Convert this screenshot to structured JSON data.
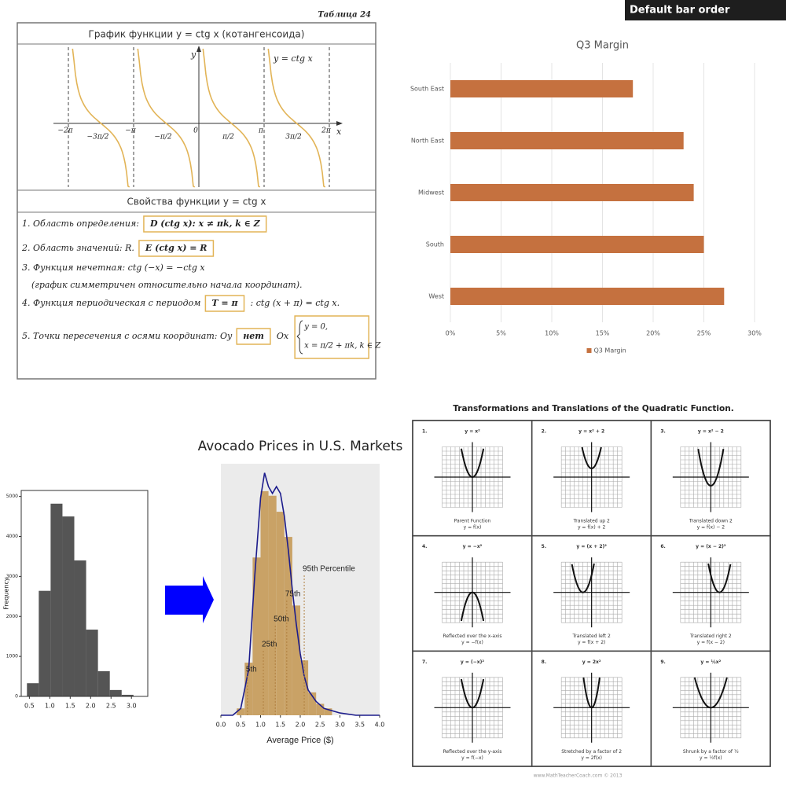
{
  "banner": "Default bar order",
  "cotangent_table": {
    "label": "Таблица 24",
    "graph_title": "График функции y = ctg x (котангенсоида)",
    "axis_y": "y",
    "axis_x": "x",
    "curve_label": "y = ctg x",
    "x_labels": [
      "−2π",
      "−3π/2",
      "−π",
      "−π/2",
      "0",
      "π/2",
      "π",
      "3π/2",
      "2π"
    ],
    "properties_title": "Свойства функции y = ctg x",
    "properties": [
      {
        "text": "1. Область определения:",
        "box": "D (ctg x): x ≠ πk, k ∈ Z"
      },
      {
        "text": "2. Область значений: R.",
        "box": "E (ctg x) = R"
      },
      {
        "text": "3. Функция нечетная: ctg (−x) = −ctg x",
        "note": "(график симметричен относительно начала координат)."
      },
      {
        "text": "4. Функция периодическая с периодом",
        "box": "T = π",
        "after": ": ctg (x + π) = ctg x."
      },
      {
        "text": "5. Точки пересечения с осями координат: Oy",
        "box": "нет",
        "after": "Ox",
        "system": [
          "y = 0,",
          "x = π/2 + πk, k ∈ Z"
        ]
      }
    ]
  },
  "chart_data": [
    {
      "type": "bar",
      "orientation": "horizontal",
      "title": "Q3 Margin",
      "categories": [
        "South East",
        "North East",
        "Midwest",
        "South",
        "West"
      ],
      "series": [
        {
          "name": "Q3 Margin",
          "color": "#c5713f",
          "values": [
            18,
            23,
            24,
            25,
            27
          ]
        }
      ],
      "xlim": [
        0,
        30
      ],
      "xticks": [
        {
          "value": 0,
          "label": "0%"
        },
        {
          "value": 5,
          "label": "5%"
        },
        {
          "value": 10,
          "label": "10%"
        },
        {
          "value": 15,
          "label": "15%"
        },
        {
          "value": 20,
          "label": "20%"
        },
        {
          "value": 25,
          "label": "25%"
        },
        {
          "value": 30,
          "label": "30%"
        }
      ],
      "grid": true,
      "legend": "bottom"
    },
    {
      "type": "histogram",
      "y_label": "Frequency",
      "color": "#555555",
      "bins": [
        0.44,
        0.73,
        1.02,
        1.31,
        1.6,
        1.89,
        2.18,
        2.47,
        2.76,
        3.05
      ],
      "values": [
        330,
        2640,
        4820,
        4500,
        3400,
        1670,
        630,
        160,
        40
      ],
      "xlim": [
        0.3,
        3.4
      ],
      "ylim": [
        0,
        5150
      ],
      "xticks": [
        0.5,
        {
          "value": 1.0,
          "label": "1.0"
        },
        1.5,
        {
          "value": 2.0,
          "label": "2.0"
        },
        2.5,
        {
          "value": 3.0,
          "label": "3.0"
        }
      ],
      "yticks": [
        0,
        1000,
        2000,
        3000,
        4000,
        5000
      ],
      "frame": true
    },
    {
      "type": "histogram",
      "title": "Avocado Prices in U.S. Markets",
      "x_label": "Average Price ($)",
      "color": "#c9a266",
      "bins": [
        0.4,
        0.6,
        0.8,
        1.0,
        1.2,
        1.4,
        1.6,
        1.8,
        2.0,
        2.2,
        2.4,
        2.6,
        2.8
      ],
      "values": [
        0.03,
        0.23,
        0.69,
        0.98,
        0.96,
        0.89,
        0.78,
        0.48,
        0.24,
        0.1,
        0.05,
        0.03
      ],
      "density": {
        "color": "#1c1c8c",
        "x": [
          0,
          0.3,
          0.5,
          0.7,
          0.85,
          1.0,
          1.1,
          1.2,
          1.3,
          1.4,
          1.5,
          1.6,
          1.7,
          1.8,
          1.9,
          2.0,
          2.1,
          2.2,
          2.4,
          2.6,
          3.0,
          3.4,
          4.0
        ],
        "values": [
          0,
          0,
          0.03,
          0.2,
          0.6,
          0.95,
          1.06,
          1.0,
          0.97,
          1.0,
          0.97,
          0.87,
          0.72,
          0.55,
          0.4,
          0.27,
          0.17,
          0.11,
          0.06,
          0.03,
          0.01,
          0,
          0
        ]
      },
      "annotations": [
        {
          "text": "5th",
          "x": 0.67
        },
        {
          "text": "25th",
          "x": 1.07
        },
        {
          "text": "50th",
          "x": 1.37
        },
        {
          "text": "75th",
          "x": 1.66
        },
        {
          "text": "95th Percentile",
          "x": 2.1
        }
      ],
      "xlim": [
        0,
        4
      ],
      "ylim": [
        0,
        1.1
      ],
      "xticks": [
        {
          "value": 0,
          "label": "0.0"
        },
        0.5,
        {
          "value": 1,
          "label": "1.0"
        },
        1.5,
        {
          "value": 2,
          "label": "2.0"
        },
        2.5,
        {
          "value": 3,
          "label": "3.0"
        },
        3.5,
        {
          "value": 4,
          "label": "4.0"
        }
      ],
      "background": "#ebebeb"
    }
  ],
  "quadratic": {
    "title": "Transformations and Translations of the Quadratic Function.",
    "cells": [
      {
        "number": "1.",
        "equation": "y = x²",
        "caption": "Parent Function",
        "rule": "y = f(x)"
      },
      {
        "number": "2.",
        "equation": "y = x² + 2",
        "caption": "Translated up 2",
        "rule": "y = f(x) + 2"
      },
      {
        "number": "3.",
        "equation": "y = x² − 2",
        "caption": "Translated down 2",
        "rule": "y = f(x) − 2"
      },
      {
        "number": "4.",
        "equation": "y = −x²",
        "caption": "Reflected over the x-axis",
        "rule": "y = −f(x)"
      },
      {
        "number": "5.",
        "equation": "y = (x + 2)²",
        "caption": "Translated left 2",
        "rule": "y = f(x + 2)"
      },
      {
        "number": "6.",
        "equation": "y = (x − 2)²",
        "caption": "Translated right 2",
        "rule": "y = f(x − 2)"
      },
      {
        "number": "7.",
        "equation": "y = (−x)²",
        "caption": "Reflected over the y-axis",
        "rule": "y = f(−x)"
      },
      {
        "number": "8.",
        "equation": "y = 2x²",
        "caption": "Stretched by a factor of 2",
        "rule": "y = 2f(x)"
      },
      {
        "number": "9.",
        "equation": "y = ½x²",
        "caption": "Shrunk by a factor of ½",
        "rule": "y = ½f(x)"
      }
    ],
    "footer": "www.MathTeacherCoach.com © 2013"
  }
}
